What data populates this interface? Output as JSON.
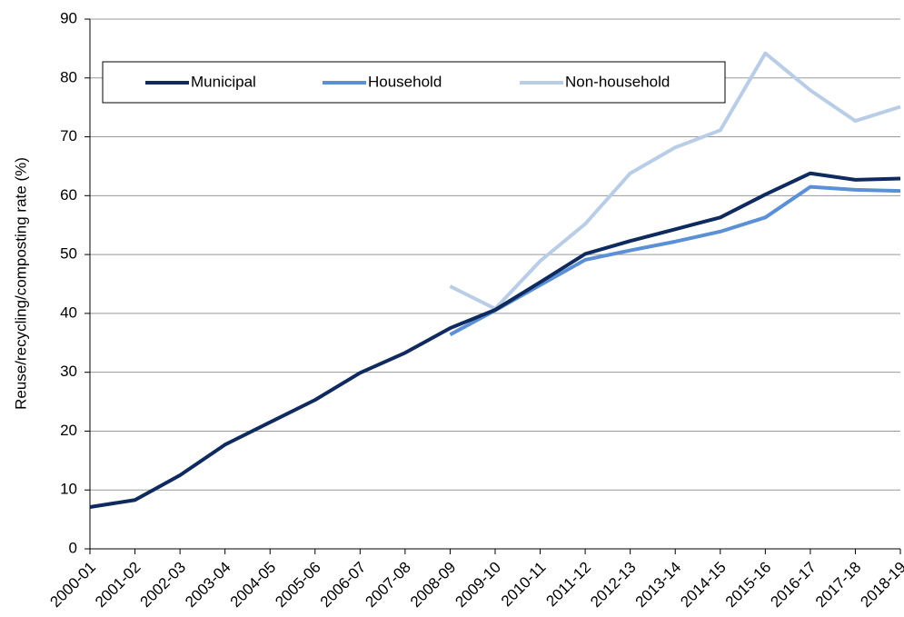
{
  "chart_data": {
    "type": "line",
    "y_label": "Reuse/recycling/composting rate (%)",
    "categories": [
      "2000-01",
      "2001-02",
      "2002-03",
      "2003-04",
      "2004-05",
      "2005-06",
      "2006-07",
      "2007-08",
      "2008-09",
      "2009-10",
      "2010-11",
      "2011-12",
      "2012-13",
      "2013-14",
      "2014-15",
      "2015-16",
      "2016-17",
      "2017-18",
      "2018-19"
    ],
    "series": [
      {
        "name": "Municipal",
        "color": "#0f2a5e",
        "values": [
          7.1,
          8.3,
          12.5,
          17.7,
          21.5,
          25.3,
          29.9,
          33.3,
          37.5,
          40.6,
          45.3,
          50.1,
          52.3,
          54.3,
          56.3,
          60.2,
          63.8,
          62.7,
          62.9
        ]
      },
      {
        "name": "Household",
        "color": "#5b8fd6",
        "values": [
          null,
          null,
          null,
          null,
          null,
          null,
          null,
          null,
          36.4,
          40.5,
          44.8,
          49.1,
          50.7,
          52.2,
          53.9,
          56.3,
          61.5,
          61.0,
          60.8
        ]
      },
      {
        "name": "Non-household",
        "color": "#b9cde6",
        "values": [
          null,
          null,
          null,
          null,
          null,
          null,
          null,
          null,
          44.6,
          40.8,
          48.9,
          55.2,
          63.8,
          68.2,
          71.1,
          84.2,
          77.9,
          72.7,
          75.1
        ]
      }
    ],
    "ylim": [
      0,
      90
    ],
    "yticks": [
      0,
      10,
      20,
      30,
      40,
      50,
      60,
      70,
      80,
      90
    ],
    "grid": true
  }
}
